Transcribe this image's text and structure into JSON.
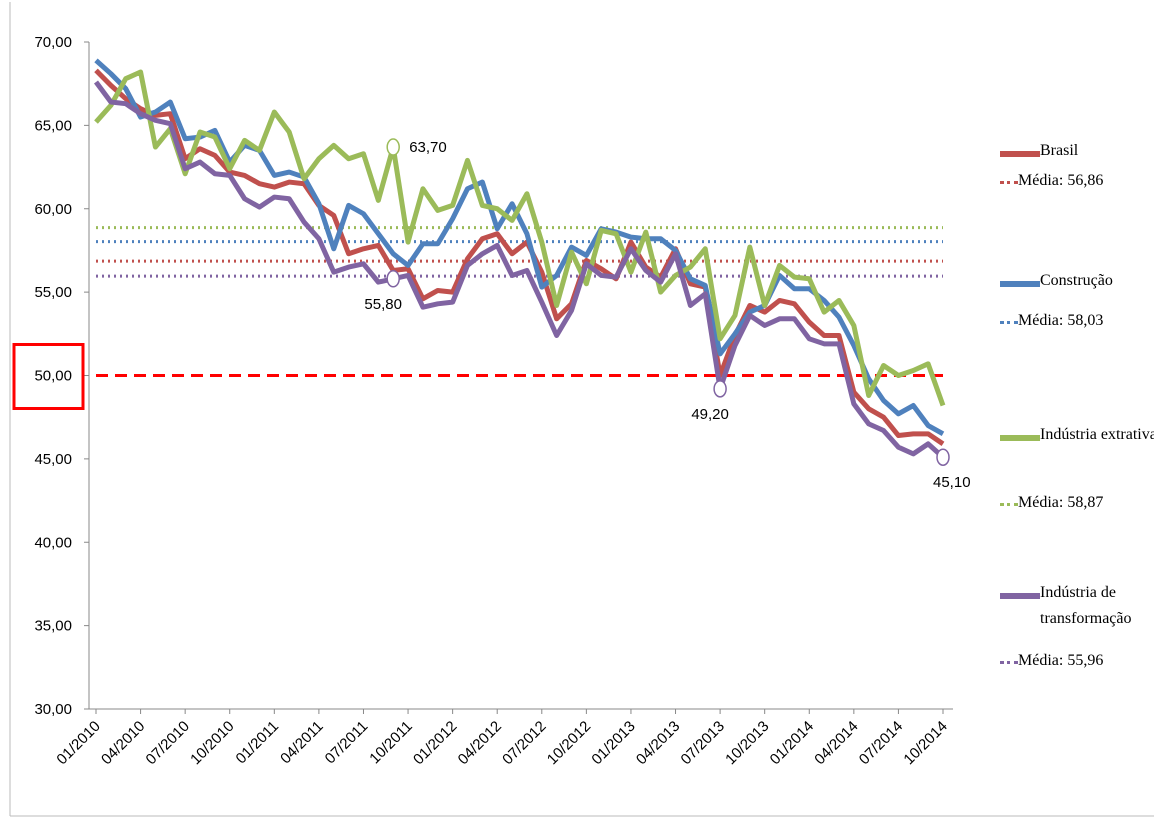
{
  "chart_data": {
    "type": "line",
    "categories": [
      "01/2010",
      null,
      null,
      "04/2010",
      null,
      null,
      "07/2010",
      null,
      null,
      "10/2010",
      null,
      null,
      "01/2011",
      null,
      null,
      "04/2011",
      null,
      null,
      "07/2011",
      null,
      null,
      "10/2011",
      null,
      null,
      "01/2012",
      null,
      null,
      "04/2012",
      null,
      null,
      "07/2012",
      null,
      null,
      "10/2012",
      null,
      null,
      "01/2013",
      null,
      null,
      "04/2013",
      null,
      null,
      "07/2013",
      null,
      null,
      "10/2013",
      null,
      null,
      "01/2014",
      null,
      null,
      "04/2014",
      null,
      null,
      "07/2014",
      null,
      null,
      "10/2014"
    ],
    "ylim": [
      30,
      70
    ],
    "yticks": [
      {
        "value": 30,
        "label": "30,00"
      },
      {
        "value": 35,
        "label": "35,00"
      },
      {
        "value": 40,
        "label": "40,00"
      },
      {
        "value": 45,
        "label": "45,00"
      },
      {
        "value": 50,
        "label": "50,00"
      },
      {
        "value": 55,
        "label": "55,00"
      },
      {
        "value": 60,
        "label": "60,00"
      },
      {
        "value": 65,
        "label": "65,00"
      },
      {
        "value": 70,
        "label": "70,00"
      }
    ],
    "reference_line": {
      "value": 50,
      "color": "#ff0000"
    },
    "highlight_tick": 4,
    "series": [
      {
        "name": "Brasil",
        "color": "#c0504d",
        "mean": 56.86,
        "mean_label": "Média: 56,86",
        "values": [
          68.3,
          67.4,
          66.6,
          66.0,
          65.6,
          65.7,
          63.0,
          63.6,
          63.2,
          62.2,
          62.0,
          61.5,
          61.3,
          61.6,
          61.5,
          60.2,
          59.6,
          57.3,
          57.6,
          57.8,
          56.3,
          56.4,
          54.6,
          55.1,
          55.0,
          57.0,
          58.2,
          58.5,
          57.3,
          58.0,
          56.2,
          53.4,
          54.3,
          56.9,
          56.4,
          55.8,
          58.0,
          56.5,
          55.9,
          57.6,
          55.5,
          55.3,
          50.0,
          52.4,
          54.2,
          53.8,
          54.5,
          54.3,
          53.2,
          52.4,
          52.4,
          49.0,
          48.0,
          47.5,
          46.4,
          46.5,
          46.5,
          45.9
        ]
      },
      {
        "name": "Construção",
        "color": "#4f81bd",
        "mean": 58.03,
        "mean_label": "Média: 58,03",
        "values": [
          68.9,
          68.1,
          67.2,
          65.5,
          65.8,
          66.4,
          64.2,
          64.3,
          64.7,
          62.8,
          63.8,
          63.5,
          62.0,
          62.2,
          61.9,
          60.3,
          57.6,
          60.2,
          59.7,
          58.5,
          57.3,
          56.6,
          57.9,
          57.9,
          59.4,
          61.2,
          61.6,
          58.8,
          60.3,
          58.5,
          55.3,
          56.0,
          57.7,
          57.2,
          58.8,
          58.6,
          58.3,
          58.2,
          58.2,
          57.5,
          55.8,
          55.4,
          51.3,
          52.5,
          53.8,
          54.2,
          56.0,
          55.2,
          55.2,
          54.5,
          53.5,
          51.8,
          49.8,
          48.5,
          47.7,
          48.2,
          47.0,
          46.5
        ]
      },
      {
        "name": "Indústria extrativa",
        "color": "#9bbb59",
        "mean": 58.87,
        "mean_label": "Média: 58,87",
        "values": [
          65.2,
          66.2,
          67.8,
          68.2,
          63.7,
          64.8,
          62.1,
          64.6,
          64.3,
          62.4,
          64.1,
          63.5,
          65.8,
          64.6,
          61.8,
          63.0,
          63.8,
          63.0,
          63.3,
          60.5,
          63.7,
          58.0,
          61.2,
          59.9,
          60.2,
          62.9,
          60.2,
          60.0,
          59.3,
          60.9,
          58.0,
          54.2,
          57.4,
          55.5,
          58.7,
          58.5,
          56.2,
          58.6,
          55.0,
          56.0,
          56.5,
          57.6,
          52.2,
          53.6,
          57.7,
          54.2,
          56.6,
          55.9,
          55.8,
          53.8,
          54.5,
          53.0,
          48.8,
          50.6,
          50.0,
          50.3,
          50.7,
          48.2
        ],
        "value_labels": [
          null,
          null,
          null,
          null,
          null,
          null,
          null,
          null,
          null,
          null,
          null,
          null,
          null,
          null,
          null,
          null,
          null,
          null,
          null,
          null,
          "63,70",
          null,
          null,
          null,
          null,
          null,
          null,
          null,
          null,
          null,
          null,
          null,
          null,
          null,
          null,
          null,
          null,
          null,
          null,
          null,
          null,
          null,
          null,
          null,
          null,
          null,
          null,
          null,
          null,
          null,
          null,
          null,
          null,
          null,
          null,
          null,
          null,
          null
        ]
      },
      {
        "name": "Indústria de transformação",
        "color": "#8064a2",
        "mean": 55.96,
        "mean_label": "Média: 55,96",
        "values": [
          67.6,
          66.4,
          66.3,
          65.7,
          65.3,
          65.1,
          62.4,
          62.8,
          62.1,
          62.0,
          60.6,
          60.1,
          60.7,
          60.6,
          59.2,
          58.2,
          56.2,
          56.5,
          56.7,
          55.6,
          55.8,
          56.0,
          54.1,
          54.3,
          54.4,
          56.6,
          57.3,
          57.8,
          56.0,
          56.3,
          54.4,
          52.4,
          53.9,
          56.7,
          56.0,
          55.9,
          57.6,
          56.3,
          55.6,
          57.3,
          54.2,
          54.9,
          49.2,
          51.8,
          53.6,
          53.0,
          53.4,
          53.4,
          52.2,
          51.9,
          51.9,
          48.3,
          47.1,
          46.7,
          45.7,
          45.3,
          45.9,
          45.1
        ],
        "value_labels": [
          null,
          null,
          null,
          null,
          null,
          null,
          null,
          null,
          null,
          null,
          null,
          null,
          null,
          null,
          null,
          null,
          null,
          null,
          null,
          null,
          "55,80",
          null,
          null,
          null,
          null,
          null,
          null,
          null,
          null,
          null,
          null,
          null,
          null,
          null,
          null,
          null,
          null,
          null,
          null,
          null,
          null,
          null,
          "49,20",
          null,
          null,
          null,
          null,
          null,
          null,
          null,
          null,
          null,
          null,
          null,
          null,
          null,
          null,
          "45,10"
        ]
      }
    ]
  }
}
